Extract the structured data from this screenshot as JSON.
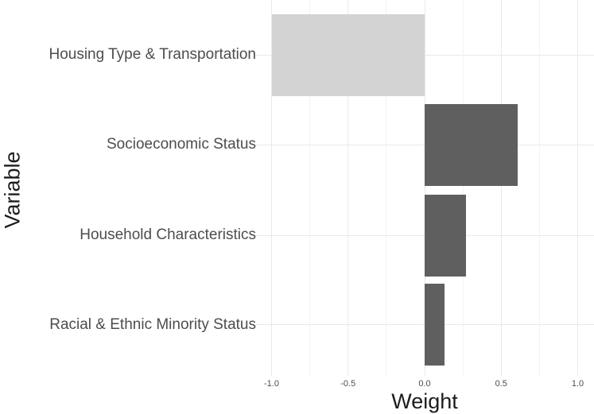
{
  "chart_data": {
    "type": "bar",
    "orientation": "horizontal",
    "title": "",
    "xlabel": "Weight",
    "ylabel": "Variable",
    "categories": [
      "Housing Type & Transportation",
      "Socioeconomic Status",
      "Household Characteristics",
      "Racial & Ethnic Minority Status"
    ],
    "values": [
      -1.0,
      0.61,
      0.27,
      0.13
    ],
    "bar_colors": [
      "#d3d3d3",
      "#5f5f5f",
      "#5f5f5f",
      "#5f5f5f"
    ],
    "xlim": [
      -1.1,
      1.1
    ],
    "x_major_ticks": [
      -1.0,
      -0.5,
      0.0,
      0.5,
      1.0
    ],
    "x_tick_labels": [
      "-1.0",
      "-0.5",
      "0.0",
      "0.5",
      "1.0"
    ],
    "x_minor_ticks": [
      -0.75,
      -0.25,
      0.25,
      0.75
    ],
    "grid": "vertical major+minor; horizontal major at category rows",
    "legend": "none",
    "background": "#ffffff"
  },
  "style": {
    "grid_major_color": "#e9e9e9",
    "grid_minor_color": "#f3f3f3",
    "axis_text_color": "#4d4d4d",
    "axis_title_color": "#1c1c1c",
    "bar_negative_color": "#d3d3d3",
    "bar_positive_color": "#5f5f5f"
  }
}
